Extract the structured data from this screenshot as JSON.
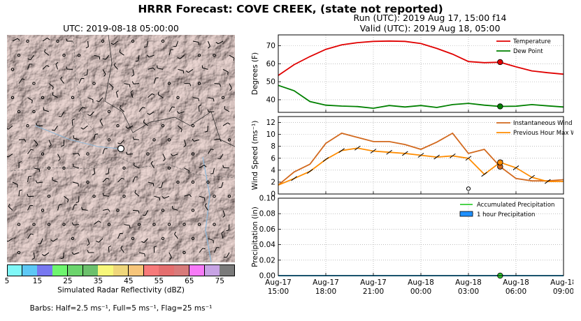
{
  "header": {
    "suptitle": "HRRR Forecast: COVE CREEK, (state not reported)",
    "run": "Run (UTC): 2019 Aug 17, 15:00 f14",
    "valid": "Valid (UTC): 2019 Aug 18, 05:00"
  },
  "map": {
    "title": "UTC: 2019-08-18 05:00:00",
    "colorbar_label": "Simulated Radar Reflectivity (dBZ)",
    "colorbar_ticks": [
      "5",
      "15",
      "25",
      "35",
      "45",
      "55",
      "65",
      "75"
    ],
    "colorbar_colors": [
      "#7ff7f7",
      "#5dc8f5",
      "#7878f0",
      "#6ef56e",
      "#6cd46c",
      "#6cc06c",
      "#f7f77a",
      "#efd67a",
      "#f7c57a",
      "#f77a7a",
      "#e46e6e",
      "#d87a7a",
      "#f77af7",
      "#c7a3e4",
      "#7a7a7a"
    ],
    "barbs_note": "Barbs: Half=2.5 ms⁻¹, Full=5 ms⁻¹, Flag=25 ms⁻¹"
  },
  "chart_data": [
    {
      "type": "line",
      "ylabel": "Degrees (F)",
      "ylim": [
        33,
        76
      ],
      "yticks": [
        40,
        50,
        60,
        70
      ],
      "x": [
        0,
        1,
        2,
        3,
        4,
        5,
        6,
        7,
        8,
        9,
        10,
        11,
        12,
        13,
        14,
        15,
        16,
        17,
        18
      ],
      "series": [
        {
          "name": "Temperature",
          "color": "#e00000",
          "values": [
            53.5,
            59.5,
            64,
            68,
            70.5,
            71.7,
            72.4,
            72.6,
            72.4,
            71.2,
            68.5,
            65.3,
            61.2,
            60.6,
            60.8,
            58.3,
            56,
            55,
            54.2
          ]
        },
        {
          "name": "Dew Point",
          "color": "#008000",
          "values": [
            48,
            45,
            39,
            37,
            36.5,
            36.2,
            35.3,
            36.8,
            36,
            36.8,
            35.7,
            37.3,
            38,
            37,
            36.3,
            36.4,
            37.3,
            36.6,
            36
          ]
        }
      ],
      "markers": [
        {
          "x": 14,
          "y": 60.9,
          "color": "#e00000"
        },
        {
          "x": 14,
          "y": 36.3,
          "color": "#008000"
        }
      ],
      "grid": true,
      "legend": "top-right"
    },
    {
      "type": "line",
      "ylabel": "Wind Speed (ms⁻¹)",
      "ylim": [
        0,
        13
      ],
      "yticks": [
        0,
        2,
        4,
        6,
        8,
        10,
        12
      ],
      "x": [
        0,
        1,
        2,
        3,
        4,
        5,
        6,
        7,
        8,
        9,
        10,
        11,
        12,
        13,
        14,
        15,
        16,
        17,
        18
      ],
      "series": [
        {
          "name": "Instantaneous Wind Gust",
          "color": "#d2691e",
          "values": [
            1.5,
            3.7,
            5,
            8.5,
            10.2,
            9.5,
            8.8,
            8.8,
            8.3,
            7.5,
            8.7,
            10.2,
            6.8,
            7.5,
            4.6,
            2.6,
            2.2,
            2.2,
            2.4
          ]
        },
        {
          "name": "Previous Hour Max Wind",
          "color": "#ff8c00",
          "values": [
            1.5,
            2.6,
            3.8,
            5.8,
            7.3,
            7.7,
            7.2,
            7,
            6.8,
            6.5,
            6.2,
            6.4,
            6,
            3.3,
            5.3,
            4.4,
            2.8,
            2.1,
            2.1
          ]
        }
      ],
      "markers": [
        {
          "x": 14,
          "y": 4.6,
          "color": "#d2691e"
        },
        {
          "x": 14,
          "y": 5.3,
          "color": "#ff8c00"
        }
      ],
      "calm_marker": {
        "x": 12,
        "y": 0.9
      },
      "grid": true,
      "legend": "top-right"
    },
    {
      "type": "line",
      "ylabel": "Precipitation (in)",
      "ylim": [
        0,
        0.1
      ],
      "yticks": [
        "0.00",
        "0.02",
        "0.04",
        "0.06",
        "0.08",
        "0.10"
      ],
      "series": [
        {
          "name": "Accumulated Precipitation",
          "color": "#32cd32",
          "values": [
            0,
            0,
            0,
            0,
            0,
            0,
            0,
            0,
            0,
            0,
            0,
            0,
            0,
            0,
            0,
            0,
            0,
            0,
            0
          ]
        },
        {
          "name": "1 hour Precipitation",
          "color": "#1e90ff",
          "values": [
            0,
            0,
            0,
            0,
            0,
            0,
            0,
            0,
            0,
            0,
            0,
            0,
            0,
            0,
            0,
            0,
            0,
            0,
            0
          ]
        }
      ],
      "markers": [
        {
          "x": 14,
          "y": 0,
          "color": "#32cd32"
        }
      ],
      "grid": true,
      "legend": "top-right"
    }
  ],
  "xaxis": {
    "ticks": [
      {
        "top": "Aug-17",
        "bottom": "15:00"
      },
      {
        "top": "Aug-17",
        "bottom": "18:00"
      },
      {
        "top": "Aug-17",
        "bottom": "21:00"
      },
      {
        "top": "Aug-18",
        "bottom": "00:00"
      },
      {
        "top": "Aug-18",
        "bottom": "03:00"
      },
      {
        "top": "Aug-18",
        "bottom": "06:00"
      },
      {
        "top": "Aug-18",
        "bottom": "09:00"
      }
    ]
  }
}
